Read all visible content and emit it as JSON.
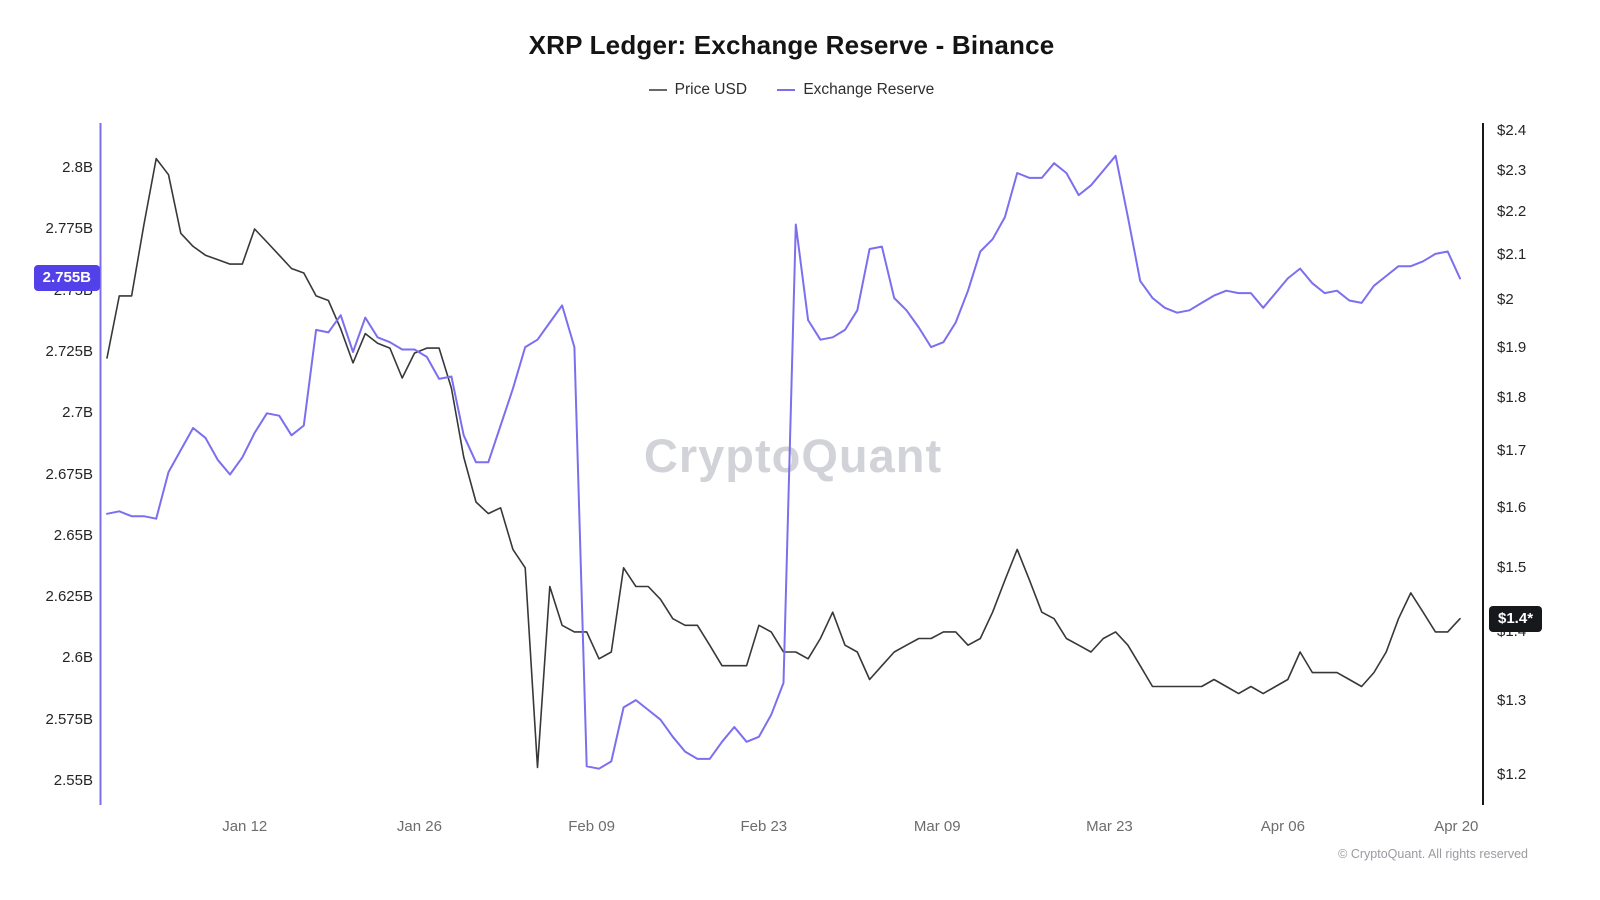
{
  "header": {
    "title": "XRP Ledger: Exchange Reserve - Binance",
    "legend": [
      {
        "label": "Price USD",
        "color": "#66686c"
      },
      {
        "label": "Exchange Reserve",
        "color": "#7b6ff0"
      }
    ]
  },
  "watermark": "CryptoQuant",
  "footer": {
    "copyright": "© CryptoQuant. All rights reserved"
  },
  "chart_data": {
    "type": "line",
    "title": "XRP Ledger: Exchange Reserve - Binance",
    "x_ticks": [
      {
        "label": "Jan 12",
        "i": 11.2
      },
      {
        "label": "Jan 26",
        "i": 25.4
      },
      {
        "label": "Feb 09",
        "i": 39.4
      },
      {
        "label": "Feb 23",
        "i": 53.4
      },
      {
        "label": "Mar 09",
        "i": 67.5
      },
      {
        "label": "Mar 23",
        "i": 81.5
      },
      {
        "label": "Apr 06",
        "i": 95.6
      },
      {
        "label": "Apr 20",
        "i": 109.7
      }
    ],
    "left_axis": {
      "scale": "linear",
      "min": 2.5402,
      "max": 2.8184,
      "unit": "B",
      "ticks": [
        {
          "label": "2.8B",
          "value": 2.8
        },
        {
          "label": "2.775B",
          "value": 2.775
        },
        {
          "label": "2.75B",
          "value": 2.75
        },
        {
          "label": "2.725B",
          "value": 2.725
        },
        {
          "label": "2.7B",
          "value": 2.7
        },
        {
          "label": "2.675B",
          "value": 2.675
        },
        {
          "label": "2.65B",
          "value": 2.65
        },
        {
          "label": "2.625B",
          "value": 2.625
        },
        {
          "label": "2.6B",
          "value": 2.6
        },
        {
          "label": "2.575B",
          "value": 2.575
        },
        {
          "label": "2.55B",
          "value": 2.55
        }
      ]
    },
    "right_axis": {
      "scale": "log",
      "min": 1.162,
      "max": 2.421,
      "unit": "$",
      "ticks": [
        {
          "label": "$2.4",
          "value": 2.4
        },
        {
          "label": "$2.3",
          "value": 2.3
        },
        {
          "label": "$2.2",
          "value": 2.2
        },
        {
          "label": "$2.1",
          "value": 2.1
        },
        {
          "label": "$2",
          "value": 2.0
        },
        {
          "label": "$1.9",
          "value": 1.9
        },
        {
          "label": "$1.8",
          "value": 1.8
        },
        {
          "label": "$1.7",
          "value": 1.7
        },
        {
          "label": "$1.6",
          "value": 1.6
        },
        {
          "label": "$1.5",
          "value": 1.5
        },
        {
          "label": "$1.4",
          "value": 1.4
        },
        {
          "label": "$1.3",
          "value": 1.3
        },
        {
          "label": "$1.2",
          "value": 1.2
        }
      ]
    },
    "series": [
      {
        "name": "Price USD",
        "axis": "right",
        "color": "#37383b",
        "values": [
          1.88,
          2.01,
          2.01,
          2.17,
          2.33,
          2.29,
          2.15,
          2.12,
          2.1,
          2.09,
          2.08,
          2.08,
          2.16,
          2.13,
          2.1,
          2.07,
          2.06,
          2.01,
          2.0,
          1.94,
          1.87,
          1.93,
          1.91,
          1.9,
          1.84,
          1.89,
          1.9,
          1.9,
          1.82,
          1.69,
          1.61,
          1.59,
          1.6,
          1.53,
          1.5,
          1.21,
          1.47,
          1.41,
          1.4,
          1.4,
          1.36,
          1.37,
          1.5,
          1.47,
          1.47,
          1.45,
          1.42,
          1.41,
          1.41,
          1.38,
          1.35,
          1.35,
          1.35,
          1.41,
          1.4,
          1.37,
          1.37,
          1.36,
          1.39,
          1.43,
          1.38,
          1.37,
          1.33,
          1.35,
          1.37,
          1.38,
          1.39,
          1.39,
          1.4,
          1.4,
          1.38,
          1.39,
          1.43,
          1.48,
          1.53,
          1.48,
          1.43,
          1.42,
          1.39,
          1.38,
          1.37,
          1.39,
          1.4,
          1.38,
          1.35,
          1.32,
          1.32,
          1.32,
          1.32,
          1.32,
          1.33,
          1.32,
          1.31,
          1.32,
          1.31,
          1.32,
          1.33,
          1.37,
          1.34,
          1.34,
          1.34,
          1.33,
          1.32,
          1.34,
          1.37,
          1.42,
          1.46,
          1.43,
          1.4,
          1.4,
          1.42
        ]
      },
      {
        "name": "Exchange Reserve",
        "axis": "left",
        "color": "#7b6ff0",
        "values": [
          2.659,
          2.66,
          2.658,
          2.658,
          2.657,
          2.676,
          2.685,
          2.694,
          2.69,
          2.681,
          2.675,
          2.682,
          2.692,
          2.7,
          2.699,
          2.691,
          2.695,
          2.734,
          2.733,
          2.74,
          2.725,
          2.739,
          2.731,
          2.729,
          2.726,
          2.726,
          2.723,
          2.714,
          2.715,
          2.691,
          2.68,
          2.68,
          2.695,
          2.71,
          2.727,
          2.73,
          2.737,
          2.744,
          2.727,
          2.556,
          2.555,
          2.558,
          2.58,
          2.583,
          2.579,
          2.575,
          2.568,
          2.562,
          2.559,
          2.559,
          2.566,
          2.572,
          2.566,
          2.568,
          2.577,
          2.59,
          2.777,
          2.738,
          2.73,
          2.731,
          2.734,
          2.742,
          2.767,
          2.768,
          2.747,
          2.742,
          2.735,
          2.727,
          2.729,
          2.737,
          2.75,
          2.766,
          2.771,
          2.78,
          2.798,
          2.796,
          2.796,
          2.802,
          2.798,
          2.789,
          2.793,
          2.799,
          2.805,
          2.78,
          2.754,
          2.747,
          2.743,
          2.741,
          2.742,
          2.745,
          2.748,
          2.75,
          2.749,
          2.749,
          2.743,
          2.749,
          2.755,
          2.759,
          2.753,
          2.749,
          2.75,
          2.746,
          2.745,
          2.752,
          2.756,
          2.76,
          2.76,
          2.762,
          2.765,
          2.766,
          2.755
        ]
      }
    ],
    "last_value_badges": {
      "left": {
        "label": "2.755B",
        "value": 2.755,
        "color": "#5240e8"
      },
      "right": {
        "label": "$1.4*",
        "value": 1.42,
        "color": "#17181b"
      }
    }
  }
}
